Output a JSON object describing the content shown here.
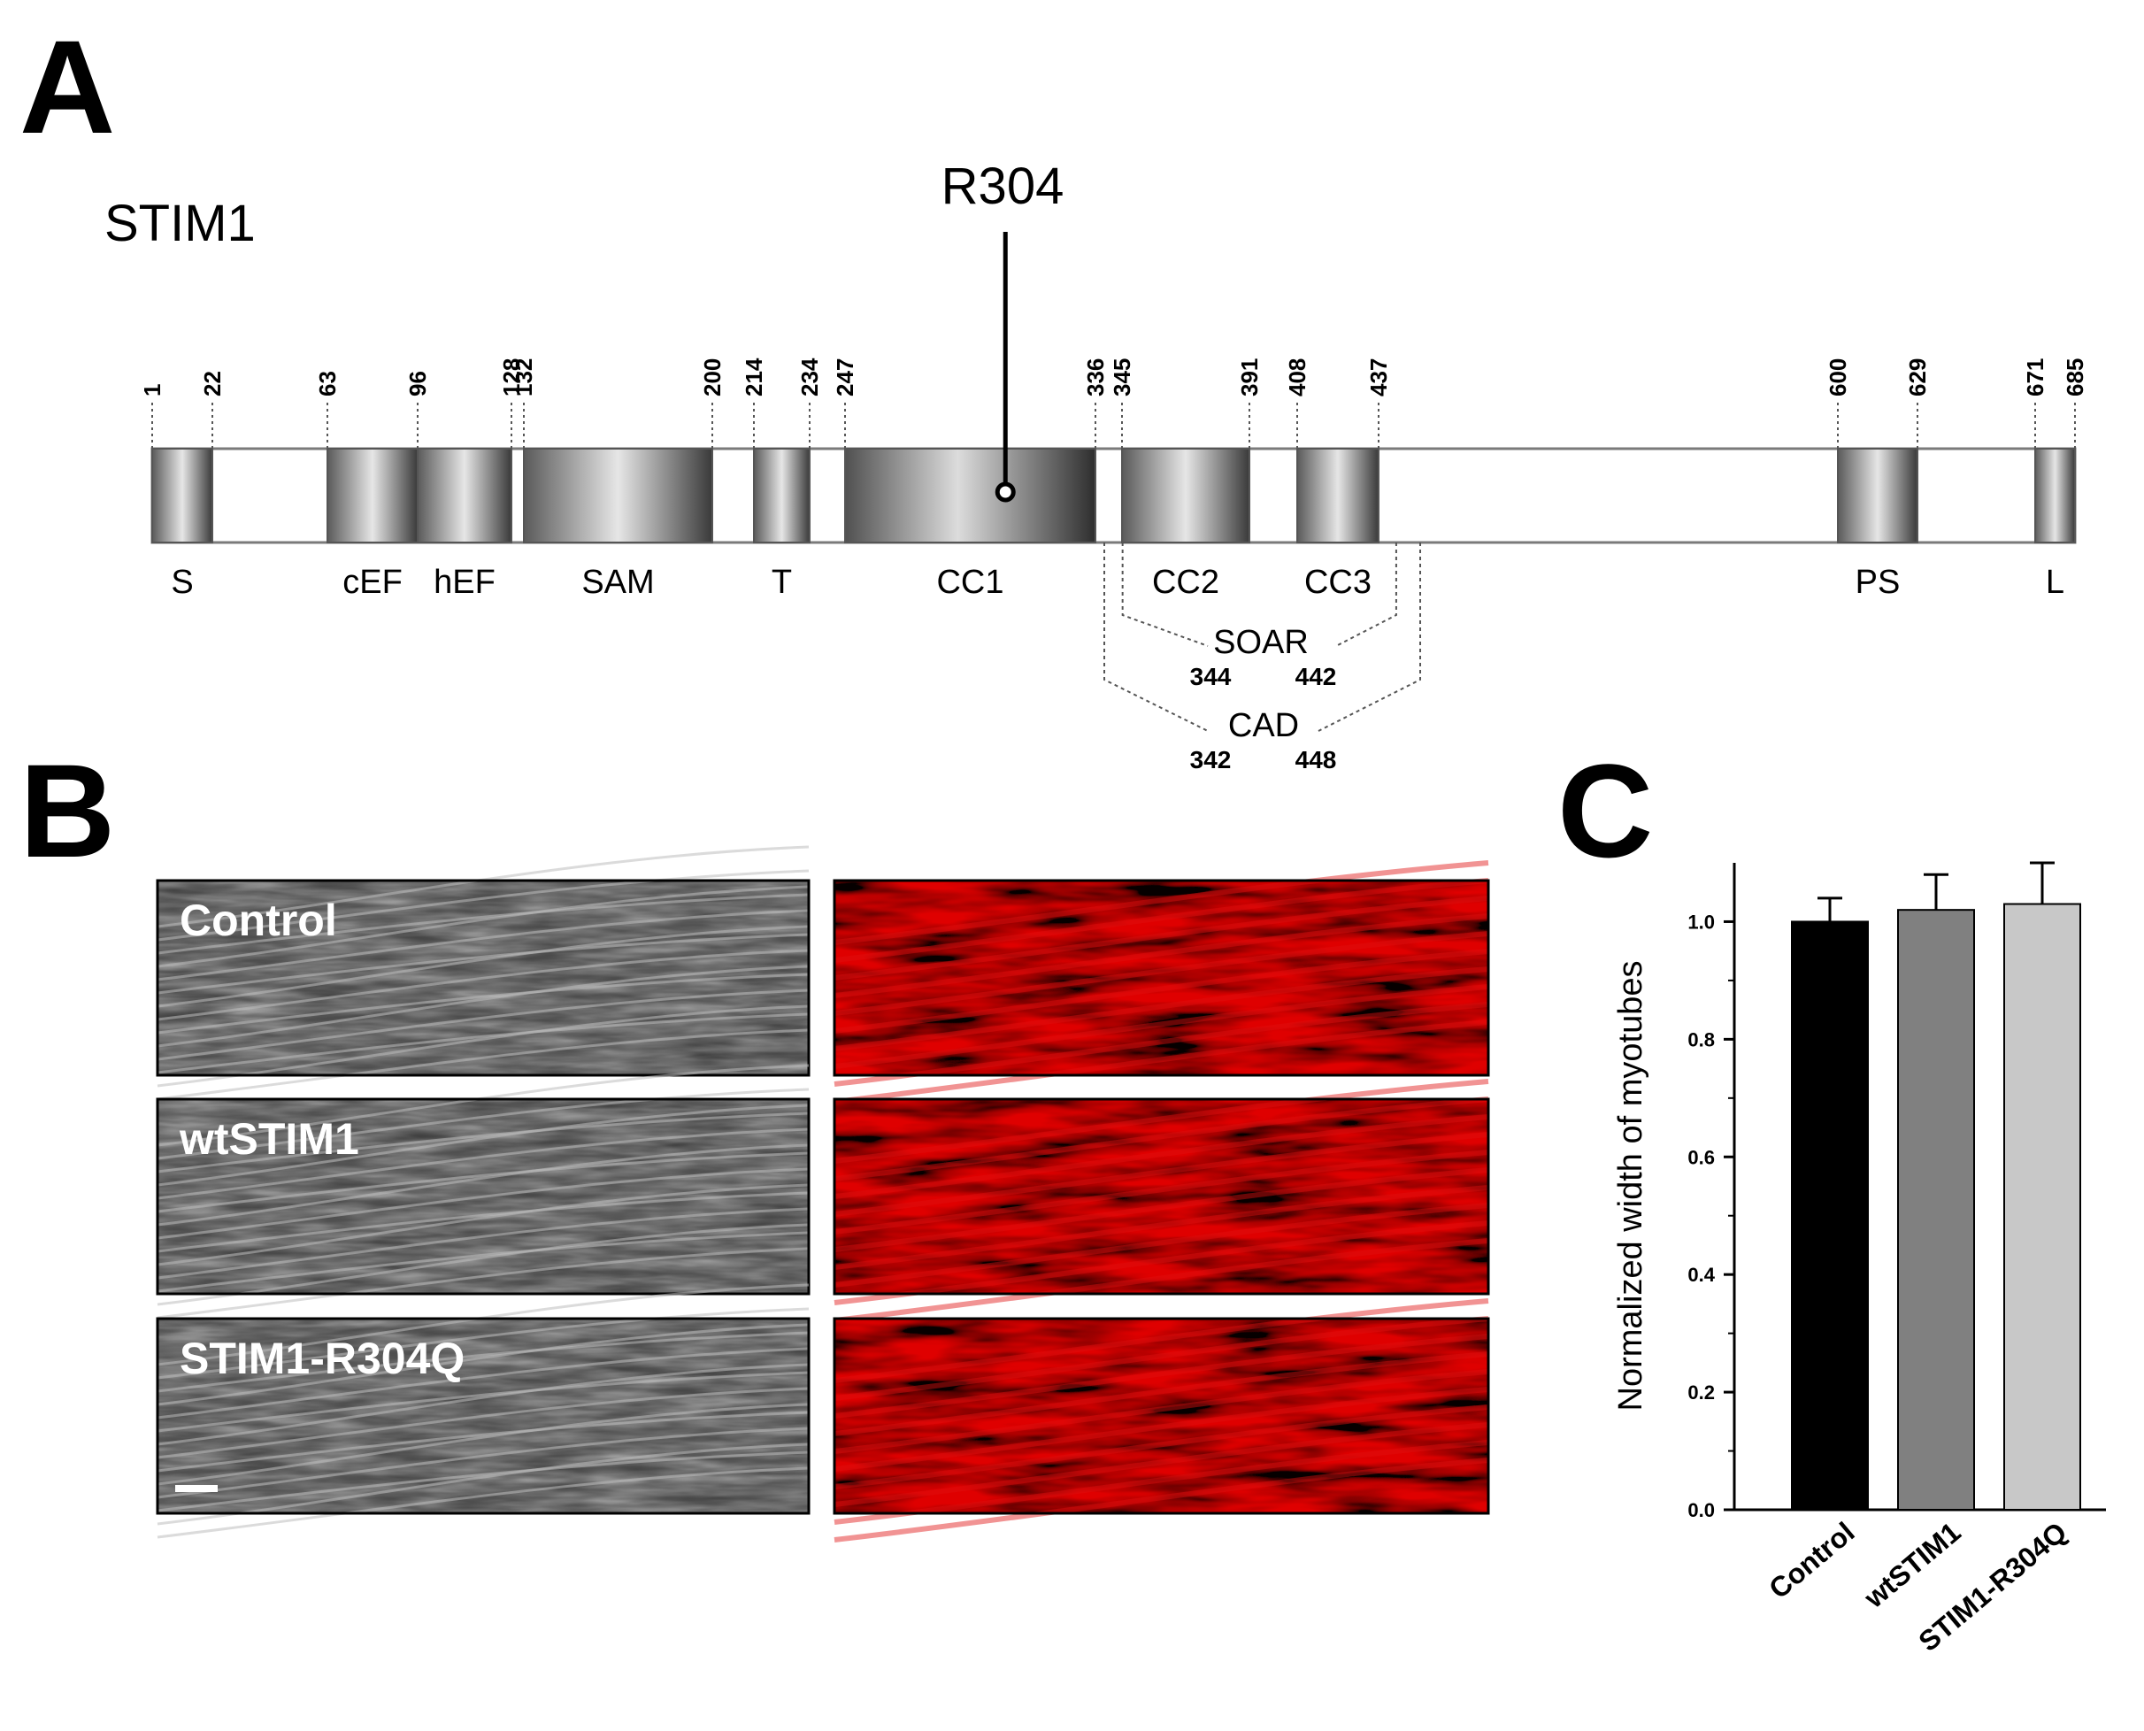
{
  "panel_a": {
    "letter": "A",
    "protein": "STIM1",
    "mutation_label": "R304",
    "mutation_position": 304,
    "length": 685,
    "domains": [
      {
        "label": "S",
        "start": 1,
        "end": 22
      },
      {
        "label": "cEF",
        "start": 63,
        "end": 96
      },
      {
        "label": "hEF",
        "start": 96,
        "end": 128
      },
      {
        "label": "SAM",
        "start": 132,
        "end": 200
      },
      {
        "label": "T",
        "start": 214,
        "end": 234
      },
      {
        "label": "CC1",
        "start": 247,
        "end": 336
      },
      {
        "label": "CC2",
        "start": 345,
        "end": 391
      },
      {
        "label": "CC3",
        "start": 408,
        "end": 437
      },
      {
        "label": "PS",
        "start": 600,
        "end": 629
      },
      {
        "label": "L",
        "start": 671,
        "end": 685
      }
    ],
    "boundary_labels": [
      "1",
      "22",
      "63",
      "96",
      "128",
      "132",
      "200",
      "214",
      "234",
      "247",
      "336",
      "345",
      "391",
      "408",
      "437",
      "600",
      "629",
      "671",
      "685"
    ],
    "subregions": [
      {
        "name": "SOAR",
        "start": "344",
        "end": "442"
      },
      {
        "name": "CAD",
        "start": "342",
        "end": "448"
      }
    ]
  },
  "panel_b": {
    "letter": "B",
    "rows": [
      "Control",
      "wtSTIM1",
      "STIM1-R304Q"
    ]
  },
  "panel_c": {
    "letter": "C",
    "chart_data": {
      "type": "bar",
      "categories": [
        "Control",
        "wtSTIM1",
        "STIM1-R304Q"
      ],
      "values": [
        1.0,
        1.02,
        1.03
      ],
      "errors": [
        0.04,
        0.06,
        0.07
      ],
      "colors": [
        "#000000",
        "#808080",
        "#c8c8c8"
      ],
      "ylabel": "Normalized width of myotubes",
      "xlabel": "",
      "ylim": [
        0,
        1.1
      ],
      "yticks": [
        "0.0",
        "0.2",
        "0.4",
        "0.6",
        "0.8",
        "1.0"
      ]
    }
  }
}
